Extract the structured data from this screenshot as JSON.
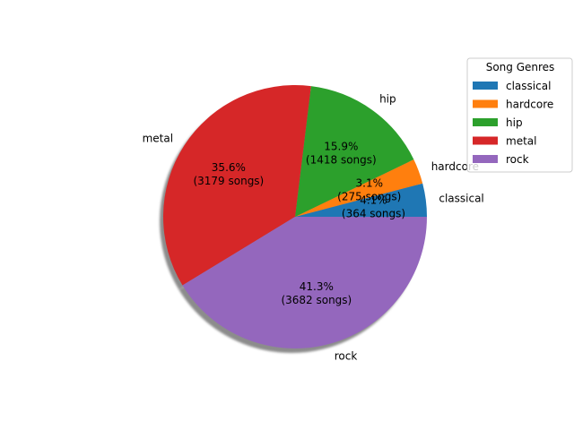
{
  "chart_data": {
    "type": "pie",
    "title": "",
    "start_angle_deg": 0,
    "direction": "counterclockwise",
    "shadow": true,
    "slices": [
      {
        "label": "classical",
        "percent_text": "4.1%",
        "count_text": "(364 songs)",
        "value": 364,
        "color": "#1f77b4"
      },
      {
        "label": "hardcore",
        "percent_text": "3.1%",
        "count_text": "(275 songs)",
        "value": 275,
        "color": "#ff7f0e"
      },
      {
        "label": "hip",
        "percent_text": "15.9%",
        "count_text": "(1418 songs)",
        "value": 1418,
        "color": "#2ca02c"
      },
      {
        "label": "metal",
        "percent_text": "35.6%",
        "count_text": "(3179 songs)",
        "value": 3179,
        "color": "#d62728"
      },
      {
        "label": "rock",
        "percent_text": "41.3%",
        "count_text": "(3682 songs)",
        "value": 3682,
        "color": "#9467bd"
      }
    ],
    "legend": {
      "title": "Song Genres",
      "placement": "right",
      "entries": [
        "classical",
        "hardcore",
        "hip",
        "metal",
        "rock"
      ]
    }
  }
}
